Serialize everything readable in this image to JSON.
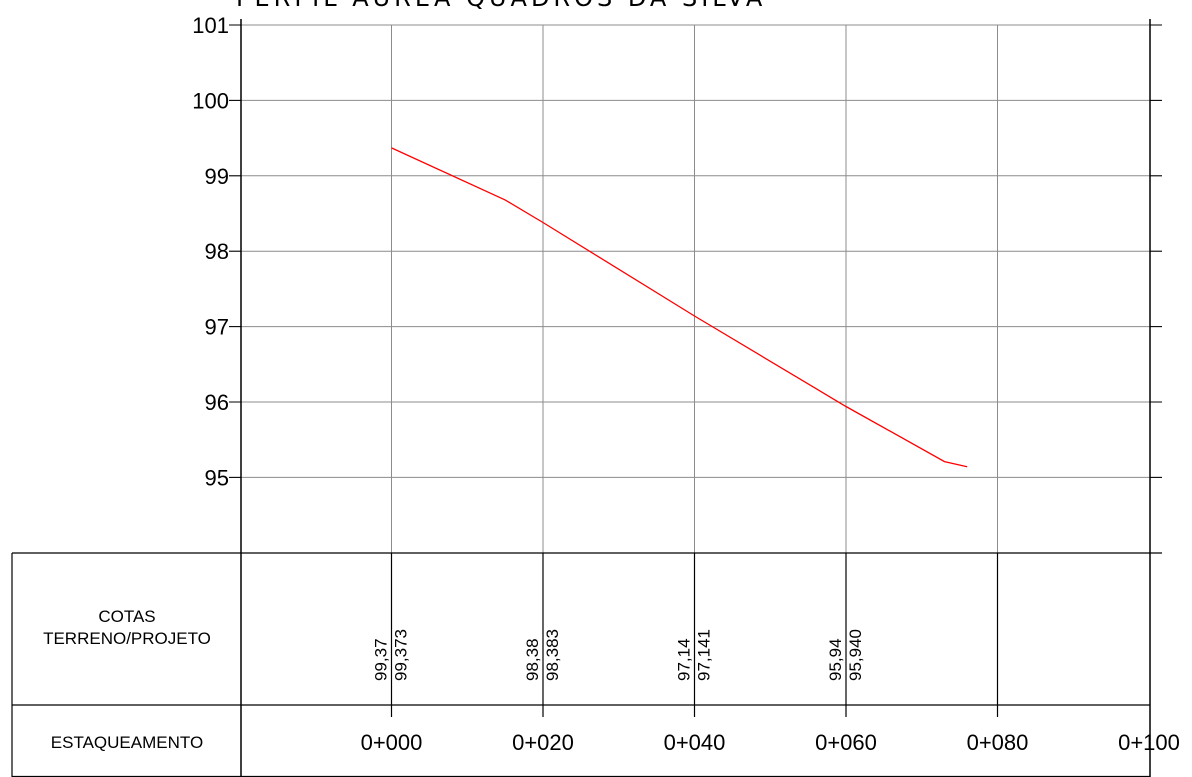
{
  "chart_data": {
    "type": "line",
    "title": "PERFIL ÁUREA QUADROS DA SILVA",
    "ylim": [
      94,
      101
    ],
    "y_ticks": [
      "101",
      "100",
      "99",
      "98",
      "97",
      "96",
      "95"
    ],
    "grid": true,
    "series": [
      {
        "color": "#ff0000",
        "points": [
          {
            "x": 0,
            "y": 99.37
          },
          {
            "x": 15,
            "y": 98.68
          },
          {
            "x": 20,
            "y": 98.38
          },
          {
            "x": 40,
            "y": 97.14
          },
          {
            "x": 60,
            "y": 95.94
          },
          {
            "x": 73,
            "y": 95.21
          },
          {
            "x": 76,
            "y": 95.14
          }
        ]
      }
    ],
    "stations": [
      {
        "x": 0,
        "label": "0+000"
      },
      {
        "x": 20,
        "label": "0+020"
      },
      {
        "x": 40,
        "label": "0+040"
      },
      {
        "x": 60,
        "label": "0+060"
      },
      {
        "x": 80,
        "label": "0+080"
      },
      {
        "x": 100,
        "label": "0+100"
      }
    ],
    "row_labels": {
      "cotas_line1": "COTAS",
      "cotas_line2": "TERRENO/PROJETO",
      "estaqueamento": "ESTAQUEAMENTO"
    },
    "elevations": [
      {
        "x": 0,
        "terreno": "99,37",
        "projeto": "99,373"
      },
      {
        "x": 20,
        "terreno": "98,38",
        "projeto": "98,383"
      },
      {
        "x": 40,
        "terreno": "97,14",
        "projeto": "97,141"
      },
      {
        "x": 60,
        "terreno": "95,94",
        "projeto": "95,940"
      }
    ]
  }
}
